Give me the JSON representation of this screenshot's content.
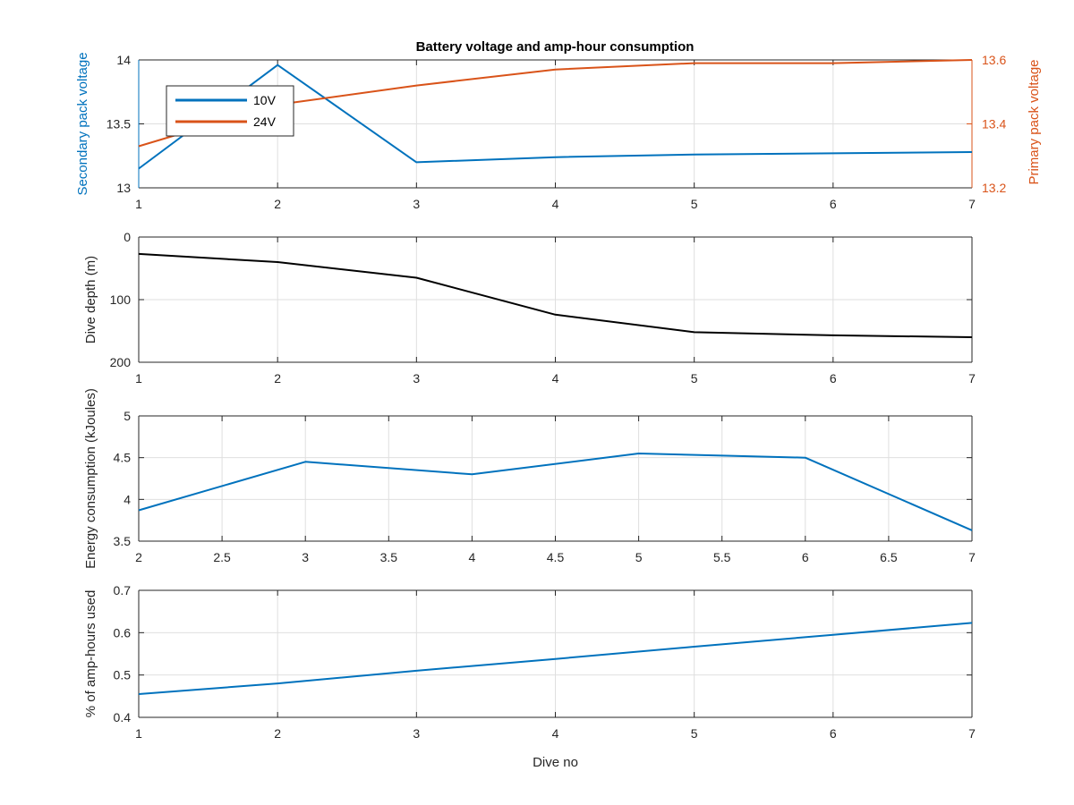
{
  "chart_data": [
    {
      "type": "line",
      "title": "Battery voltage and amp-hour consumption",
      "xlabel": "",
      "ylabel": "Secondary pack voltage",
      "ylabel_right": "Primary pack voltage",
      "xlim": [
        1,
        7
      ],
      "xticks": [
        "1",
        "2",
        "3",
        "4",
        "5",
        "6",
        "7"
      ],
      "ylim": [
        13,
        14
      ],
      "yticks": [
        "13",
        "13.5",
        "14"
      ],
      "ylim_right": [
        13.2,
        13.6
      ],
      "yticks_right": [
        "13.2",
        "13.4",
        "13.6"
      ],
      "grid": true,
      "legend": {
        "placement": "top-left",
        "entries": [
          "10V",
          "24V"
        ]
      },
      "series": [
        {
          "name": "10V",
          "axis": "left",
          "color": "#0072BD",
          "x": [
            1,
            2,
            3,
            4,
            5,
            6,
            7
          ],
          "values": [
            13.15,
            13.96,
            13.2,
            13.24,
            13.26,
            13.27,
            13.28
          ]
        },
        {
          "name": "24V",
          "axis": "right",
          "color": "#D95319",
          "x": [
            1,
            2,
            3,
            4,
            5,
            6,
            7
          ],
          "values": [
            13.33,
            13.46,
            13.52,
            13.57,
            13.59,
            13.59,
            13.6
          ]
        }
      ]
    },
    {
      "type": "line",
      "xlabel": "",
      "ylabel": "Dive depth (m)",
      "xlim": [
        1,
        7
      ],
      "xticks": [
        "1",
        "2",
        "3",
        "4",
        "5",
        "6",
        "7"
      ],
      "ylim": [
        0,
        200
      ],
      "yticks": [
        "0",
        "100",
        "200"
      ],
      "y_reversed": true,
      "grid": true,
      "series": [
        {
          "color": "#000000",
          "x": [
            1,
            2,
            3,
            4,
            5,
            6,
            7
          ],
          "values": [
            27,
            40,
            65,
            124,
            152,
            157,
            160
          ]
        }
      ]
    },
    {
      "type": "line",
      "xlabel": "",
      "ylabel": "Energy consumption (kJoules)",
      "xlim": [
        2,
        7
      ],
      "xticks": [
        "2",
        "2.5",
        "3",
        "3.5",
        "4",
        "4.5",
        "5",
        "5.5",
        "6",
        "6.5",
        "7"
      ],
      "ylim": [
        3.5,
        5
      ],
      "yticks": [
        "3.5",
        "4",
        "4.5",
        "5"
      ],
      "grid": true,
      "series": [
        {
          "color": "#0072BD",
          "x": [
            2,
            3,
            4,
            5,
            6,
            7
          ],
          "values": [
            3.87,
            4.45,
            4.3,
            4.55,
            4.5,
            3.63
          ]
        }
      ]
    },
    {
      "type": "line",
      "xlabel": "Dive no",
      "ylabel": "% of amp-hours used",
      "xlim": [
        1,
        7
      ],
      "xticks": [
        "1",
        "2",
        "3",
        "4",
        "5",
        "6",
        "7"
      ],
      "ylim": [
        0.4,
        0.7
      ],
      "yticks": [
        "0.4",
        "0.5",
        "0.6",
        "0.7"
      ],
      "grid": true,
      "series": [
        {
          "color": "#0072BD",
          "x": [
            1,
            2,
            3,
            4,
            5,
            6,
            7
          ],
          "values": [
            0.455,
            0.48,
            0.51,
            0.538,
            0.567,
            0.595,
            0.623
          ]
        }
      ]
    }
  ]
}
